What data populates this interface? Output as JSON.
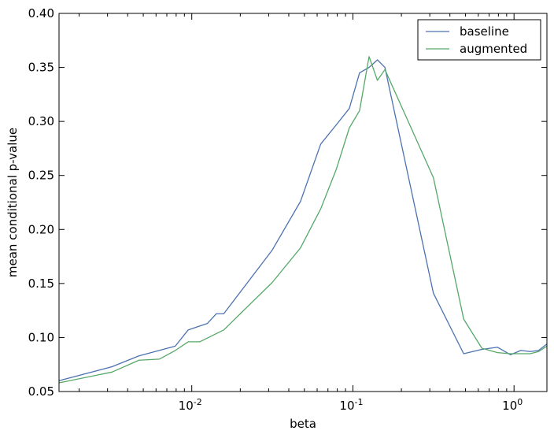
{
  "chart_data": {
    "type": "line",
    "title": "",
    "xlabel": "beta",
    "ylabel": "mean conditional p-value",
    "xscale": "log",
    "xlim": [
      0.0015,
      1.6
    ],
    "ylim": [
      0.05,
      0.4
    ],
    "grid": false,
    "legend_position": "top-right",
    "x_ticks": [
      {
        "value": 0.01,
        "base": "10",
        "exp": "-2"
      },
      {
        "value": 0.1,
        "base": "10",
        "exp": "-1"
      },
      {
        "value": 1,
        "base": "10",
        "exp": "0"
      }
    ],
    "y_ticks": [
      {
        "value": 0.05,
        "label": "0.05"
      },
      {
        "value": 0.1,
        "label": "0.10"
      },
      {
        "value": 0.15,
        "label": "0.15"
      },
      {
        "value": 0.2,
        "label": "0.20"
      },
      {
        "value": 0.25,
        "label": "0.25"
      },
      {
        "value": 0.3,
        "label": "0.30"
      },
      {
        "value": 0.35,
        "label": "0.35"
      },
      {
        "value": 0.4,
        "label": "0.40"
      }
    ],
    "series": [
      {
        "name": "baseline",
        "color": "#4c72b0",
        "x": [
          0.0015,
          0.0032,
          0.0047,
          0.0079,
          0.0095,
          0.0125,
          0.0142,
          0.0158,
          0.0316,
          0.0473,
          0.0631,
          0.079,
          0.095,
          0.11,
          0.126,
          0.142,
          0.158,
          0.316,
          0.487,
          0.632,
          0.79,
          0.95,
          1.1,
          1.26,
          1.42,
          1.6
        ],
        "y": [
          0.06,
          0.073,
          0.083,
          0.092,
          0.107,
          0.113,
          0.122,
          0.122,
          0.181,
          0.226,
          0.279,
          0.297,
          0.312,
          0.345,
          0.35,
          0.357,
          0.35,
          0.141,
          0.085,
          0.089,
          0.091,
          0.084,
          0.088,
          0.087,
          0.088,
          0.094
        ]
      },
      {
        "name": "augmented",
        "color": "#55a868",
        "x": [
          0.0015,
          0.0032,
          0.0047,
          0.0063,
          0.0079,
          0.0095,
          0.0112,
          0.0158,
          0.0316,
          0.0473,
          0.0631,
          0.079,
          0.095,
          0.11,
          0.126,
          0.142,
          0.158,
          0.316,
          0.487,
          0.632,
          0.79,
          0.95,
          1.1,
          1.26,
          1.42,
          1.6
        ],
        "y": [
          0.058,
          0.068,
          0.079,
          0.08,
          0.088,
          0.096,
          0.096,
          0.107,
          0.151,
          0.183,
          0.219,
          0.256,
          0.294,
          0.31,
          0.36,
          0.338,
          0.348,
          0.248,
          0.117,
          0.09,
          0.086,
          0.085,
          0.085,
          0.085,
          0.087,
          0.092
        ]
      }
    ]
  }
}
